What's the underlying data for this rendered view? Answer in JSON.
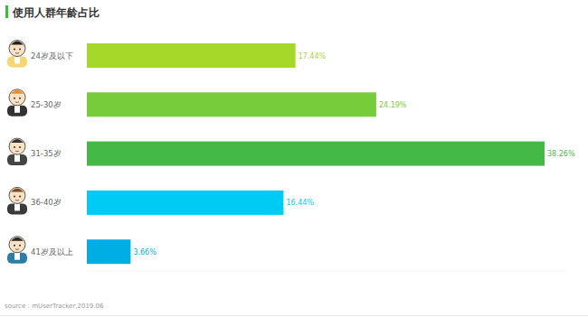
{
  "chart_data": {
    "type": "bar",
    "orientation": "horizontal",
    "title": "使用人群年龄占比",
    "categories": [
      "24岁及以下",
      "25-30岁",
      "31-35岁",
      "36-40岁",
      "41岁及以上"
    ],
    "values": [
      17.44,
      24.19,
      38.26,
      16.44,
      3.66
    ],
    "value_labels": [
      "17.44%",
      "24.19%",
      "38.26%",
      "16.44%",
      "3.66%"
    ],
    "colors": [
      "#a6d829",
      "#77cc3a",
      "#45b946",
      "#00cbf5",
      "#00ade4"
    ],
    "xlim": [
      0,
      40
    ],
    "tick_labels": false,
    "data_labels": true,
    "grid": false,
    "source": "source：mUserTracker,2019.06"
  }
}
